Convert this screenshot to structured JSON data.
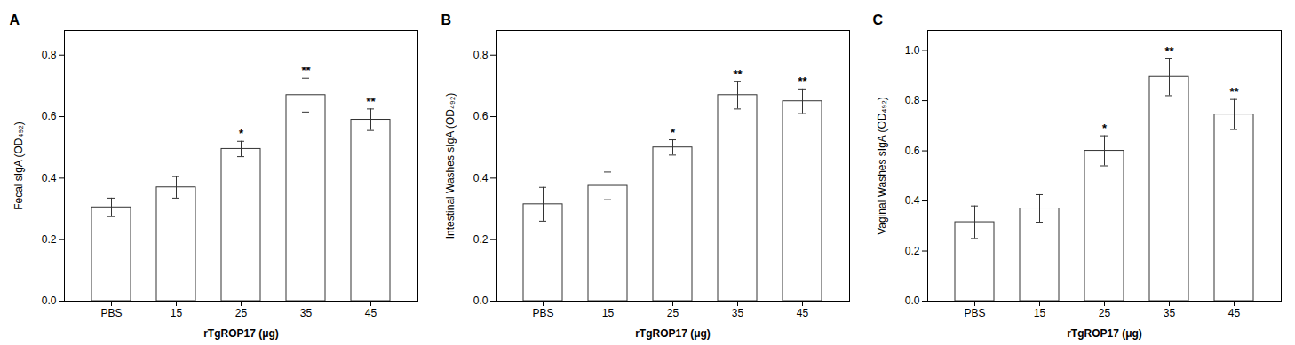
{
  "chart_data": [
    {
      "type": "bar",
      "title": "A",
      "xlabel": "rTgROP17 (μg)",
      "ylabel": "Fecal sIgA (OD₄₉₂)",
      "categories": [
        "PBS",
        "15",
        "25",
        "35",
        "45"
      ],
      "values": [
        0.305,
        0.37,
        0.495,
        0.67,
        0.59
      ],
      "errors": [
        0.03,
        0.035,
        0.025,
        0.055,
        0.035
      ],
      "significance": [
        null,
        null,
        "*",
        "**",
        "**"
      ],
      "color": "#ffffff",
      "ylim": [
        0,
        0.88
      ],
      "yticks": [
        {
          "value": 0,
          "label": "0.0"
        },
        0.2,
        0.4,
        0.6,
        0.8
      ]
    },
    {
      "type": "bar",
      "title": "B",
      "xlabel": "rTgROP17 (μg)",
      "ylabel": "Intestinal Washes sIgA (OD₄₉₂)",
      "categories": [
        "PBS",
        "15",
        "25",
        "35",
        "45"
      ],
      "values": [
        0.315,
        0.375,
        0.5,
        0.67,
        0.65
      ],
      "errors": [
        0.055,
        0.045,
        0.025,
        0.045,
        0.04
      ],
      "significance": [
        null,
        null,
        "*",
        "**",
        "**"
      ],
      "color": "#ffffff",
      "ylim": [
        0,
        0.88
      ],
      "yticks": [
        {
          "value": 0,
          "label": "0.0"
        },
        0.2,
        0.4,
        0.6,
        0.8
      ]
    },
    {
      "type": "bar",
      "title": "C",
      "xlabel": "rTgROP17 (μg)",
      "ylabel": "Vaginal Washes sIgA (OD₄₉₂)",
      "categories": [
        "PBS",
        "15",
        "25",
        "35",
        "45"
      ],
      "values": [
        0.315,
        0.37,
        0.6,
        0.895,
        0.745
      ],
      "errors": [
        0.065,
        0.055,
        0.06,
        0.075,
        0.06
      ],
      "significance": [
        null,
        null,
        "*",
        "**",
        "**"
      ],
      "color": "#ffffff",
      "ylim": [
        0,
        1.08
      ],
      "yticks": [
        {
          "value": 0,
          "label": "0.0"
        },
        0.2,
        0.4,
        0.6,
        0.8,
        {
          "value": 1,
          "label": "1.0"
        }
      ]
    }
  ]
}
